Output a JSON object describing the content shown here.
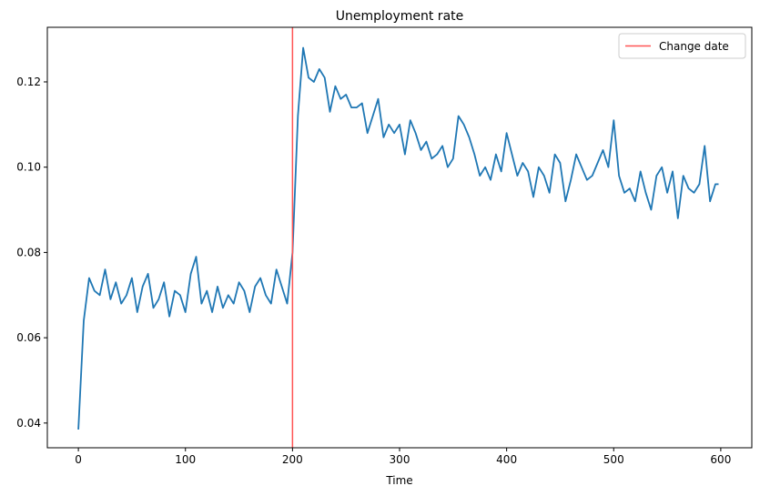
{
  "chart_data": {
    "type": "line",
    "title": "Unemployment rate",
    "xlabel": "Time",
    "ylabel": "",
    "xlim": [
      -29,
      629
    ],
    "ylim": [
      0.0342,
      0.1328
    ],
    "xticks": [
      0,
      100,
      200,
      300,
      400,
      500,
      600
    ],
    "xtick_labels": [
      "0",
      "100",
      "200",
      "300",
      "400",
      "500",
      "600"
    ],
    "yticks": [
      0.04,
      0.06,
      0.08,
      0.1,
      0.12
    ],
    "ytick_labels": [
      "0.04",
      "0.06",
      "0.08",
      "0.10",
      "0.12"
    ],
    "grid": false,
    "legend_position": "top-right",
    "series": [
      {
        "color": "#1f77b4",
        "x": [
          0,
          5,
          10,
          15,
          20,
          25,
          30,
          35,
          40,
          45,
          50,
          55,
          60,
          65,
          70,
          75,
          80,
          85,
          90,
          95,
          100,
          105,
          110,
          115,
          120,
          125,
          130,
          135,
          140,
          145,
          150,
          155,
          160,
          165,
          170,
          175,
          180,
          185,
          190,
          195,
          200,
          205,
          210,
          215,
          220,
          225,
          230,
          235,
          240,
          245,
          250,
          255,
          260,
          265,
          270,
          275,
          280,
          285,
          290,
          295,
          300,
          305,
          310,
          315,
          320,
          325,
          330,
          335,
          340,
          345,
          350,
          355,
          360,
          365,
          370,
          375,
          380,
          385,
          390,
          395,
          400,
          405,
          410,
          415,
          420,
          425,
          430,
          435,
          440,
          445,
          450,
          455,
          460,
          465,
          470,
          475,
          480,
          485,
          490,
          495,
          500,
          505,
          510,
          515,
          520,
          525,
          530,
          535,
          540,
          545,
          550,
          555,
          560,
          565,
          570,
          575,
          580,
          585,
          590,
          595,
          598
        ],
        "y": [
          0.0385,
          0.064,
          0.074,
          0.071,
          0.07,
          0.076,
          0.069,
          0.073,
          0.068,
          0.07,
          0.074,
          0.066,
          0.072,
          0.075,
          0.067,
          0.069,
          0.073,
          0.065,
          0.071,
          0.07,
          0.066,
          0.075,
          0.079,
          0.068,
          0.071,
          0.066,
          0.072,
          0.067,
          0.07,
          0.068,
          0.073,
          0.071,
          0.066,
          0.072,
          0.074,
          0.07,
          0.068,
          0.076,
          0.072,
          0.068,
          0.08,
          0.112,
          0.128,
          0.121,
          0.12,
          0.123,
          0.121,
          0.113,
          0.119,
          0.116,
          0.117,
          0.114,
          0.114,
          0.115,
          0.108,
          0.112,
          0.116,
          0.107,
          0.11,
          0.108,
          0.11,
          0.103,
          0.111,
          0.108,
          0.104,
          0.106,
          0.102,
          0.103,
          0.105,
          0.1,
          0.102,
          0.112,
          0.11,
          0.107,
          0.103,
          0.098,
          0.1,
          0.097,
          0.103,
          0.099,
          0.108,
          0.103,
          0.098,
          0.101,
          0.099,
          0.093,
          0.1,
          0.098,
          0.094,
          0.103,
          0.101,
          0.092,
          0.097,
          0.103,
          0.1,
          0.097,
          0.098,
          0.101,
          0.104,
          0.1,
          0.111,
          0.098,
          0.094,
          0.095,
          0.092,
          0.099,
          0.094,
          0.09,
          0.098,
          0.1,
          0.094,
          0.099,
          0.088,
          0.098,
          0.095,
          0.094,
          0.096,
          0.105,
          0.092,
          0.096,
          0.096
        ]
      }
    ],
    "vlines": [
      {
        "x": 200,
        "label": "Change date",
        "color": "#ff5555"
      }
    ],
    "legend": [
      {
        "label": "Change date",
        "color": "#ff5555"
      }
    ]
  }
}
